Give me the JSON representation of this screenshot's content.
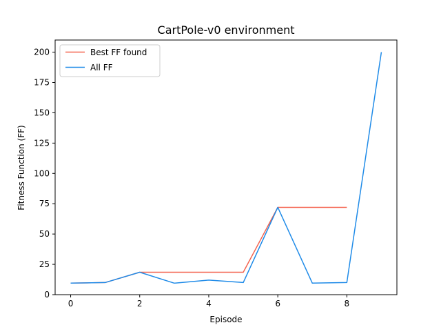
{
  "chart_data": {
    "type": "line",
    "title": "CartPole-v0 environment",
    "xlabel": "Episode",
    "ylabel": "Fitness Function (FF)",
    "xlim": [
      -0.45,
      9.45
    ],
    "ylim": [
      0,
      210
    ],
    "xticks": [
      0,
      2,
      4,
      6,
      8
    ],
    "yticks": [
      0,
      25,
      50,
      75,
      100,
      125,
      150,
      175,
      200
    ],
    "grid": false,
    "legend_position": "upper-left",
    "series": [
      {
        "name": "Best FF found",
        "color": "#f4634f",
        "x": [
          0,
          1,
          2,
          3,
          4,
          5,
          6,
          7,
          8
        ],
        "y": [
          9.5,
          10,
          18.5,
          18.5,
          18.5,
          18.5,
          72,
          72,
          72
        ]
      },
      {
        "name": "All FF",
        "color": "#1f8be8",
        "x": [
          0,
          1,
          2,
          3,
          4,
          5,
          6,
          7,
          8,
          9
        ],
        "y": [
          9.5,
          10,
          18.5,
          9.5,
          12,
          10,
          72,
          9.5,
          10,
          200
        ]
      }
    ]
  }
}
